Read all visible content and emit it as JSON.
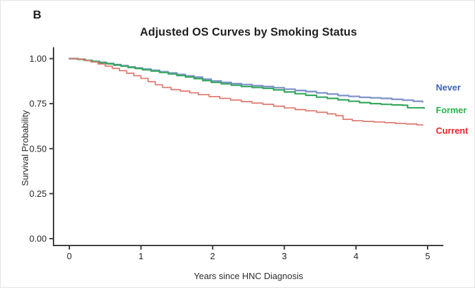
{
  "panel_label": "B",
  "title": "Adjusted OS Curves by Smoking Status",
  "y_axis": {
    "label": "Survival Probability",
    "ticks": [
      "1.00",
      "0.75",
      "0.50",
      "0.25",
      "0.00"
    ],
    "tick_values": [
      1.0,
      0.75,
      0.5,
      0.25,
      0.0
    ],
    "range": [
      0,
      1
    ]
  },
  "x_axis": {
    "label": "Years since HNC Diagnosis",
    "ticks": [
      "0",
      "1",
      "2",
      "3",
      "4",
      "5"
    ],
    "tick_values": [
      0,
      1,
      2,
      3,
      4,
      5
    ],
    "range": [
      0,
      5
    ]
  },
  "legend": [
    {
      "label": "Never",
      "color": "#3b66b3"
    },
    {
      "label": "Former",
      "color": "#24b14c"
    },
    {
      "label": "Current",
      "color": "#e8232a"
    }
  ],
  "chart_data": {
    "type": "line",
    "style": "kaplan-meier-step",
    "title": "Adjusted OS Curves by Smoking Status",
    "xlabel": "Years since HNC Diagnosis",
    "ylabel": "Survival Probability",
    "xlim": [
      0,
      5
    ],
    "ylim": [
      0,
      1
    ],
    "grid": false,
    "legend_position": "right-outside",
    "series": [
      {
        "name": "Never",
        "color": "#8095cc",
        "x": [
          0,
          0.12,
          0.22,
          0.32,
          0.42,
          0.52,
          0.62,
          0.72,
          0.82,
          0.92,
          1.02,
          1.14,
          1.26,
          1.38,
          1.5,
          1.62,
          1.74,
          1.86,
          1.98,
          2.12,
          2.26,
          2.4,
          2.55,
          2.7,
          2.85,
          3.0,
          3.15,
          3.3,
          3.45,
          3.6,
          3.75,
          3.9,
          4.05,
          4.2,
          4.35,
          4.5,
          4.65,
          4.8,
          4.93
        ],
        "y": [
          1.0,
          0.997,
          0.991,
          0.985,
          0.979,
          0.973,
          0.967,
          0.961,
          0.954,
          0.948,
          0.942,
          0.935,
          0.927,
          0.92,
          0.912,
          0.904,
          0.897,
          0.886,
          0.876,
          0.868,
          0.861,
          0.856,
          0.85,
          0.845,
          0.838,
          0.83,
          0.823,
          0.817,
          0.81,
          0.803,
          0.795,
          0.79,
          0.785,
          0.782,
          0.779,
          0.774,
          0.769,
          0.763,
          0.76
        ]
      },
      {
        "name": "Former",
        "color": "#33a75c",
        "x": [
          0,
          0.12,
          0.22,
          0.32,
          0.42,
          0.52,
          0.62,
          0.72,
          0.82,
          0.92,
          1.02,
          1.14,
          1.26,
          1.38,
          1.5,
          1.62,
          1.74,
          1.86,
          1.98,
          2.12,
          2.26,
          2.4,
          2.55,
          2.7,
          2.85,
          3.0,
          3.15,
          3.3,
          3.45,
          3.6,
          3.75,
          3.9,
          4.05,
          4.2,
          4.35,
          4.5,
          4.65,
          4.72,
          4.95
        ],
        "y": [
          1.0,
          0.996,
          0.99,
          0.984,
          0.977,
          0.971,
          0.964,
          0.958,
          0.951,
          0.945,
          0.938,
          0.931,
          0.923,
          0.915,
          0.906,
          0.898,
          0.889,
          0.878,
          0.868,
          0.86,
          0.852,
          0.845,
          0.84,
          0.835,
          0.826,
          0.815,
          0.805,
          0.796,
          0.786,
          0.779,
          0.771,
          0.763,
          0.756,
          0.75,
          0.746,
          0.743,
          0.741,
          0.727,
          0.725
        ]
      },
      {
        "name": "Current",
        "color": "#e07a70",
        "x": [
          0,
          0.1,
          0.2,
          0.3,
          0.4,
          0.5,
          0.6,
          0.7,
          0.8,
          0.9,
          1.0,
          1.1,
          1.2,
          1.3,
          1.42,
          1.55,
          1.68,
          1.8,
          1.95,
          2.1,
          2.25,
          2.4,
          2.55,
          2.7,
          2.85,
          3.0,
          3.15,
          3.3,
          3.45,
          3.6,
          3.72,
          3.82,
          3.95,
          4.1,
          4.25,
          4.4,
          4.55,
          4.7,
          4.85,
          4.93
        ],
        "y": [
          1.0,
          0.997,
          0.99,
          0.981,
          0.97,
          0.958,
          0.946,
          0.933,
          0.919,
          0.905,
          0.89,
          0.872,
          0.855,
          0.84,
          0.828,
          0.82,
          0.81,
          0.8,
          0.789,
          0.779,
          0.77,
          0.761,
          0.753,
          0.746,
          0.736,
          0.726,
          0.717,
          0.71,
          0.702,
          0.693,
          0.683,
          0.663,
          0.655,
          0.651,
          0.648,
          0.644,
          0.64,
          0.637,
          0.632,
          0.63
        ]
      }
    ]
  }
}
